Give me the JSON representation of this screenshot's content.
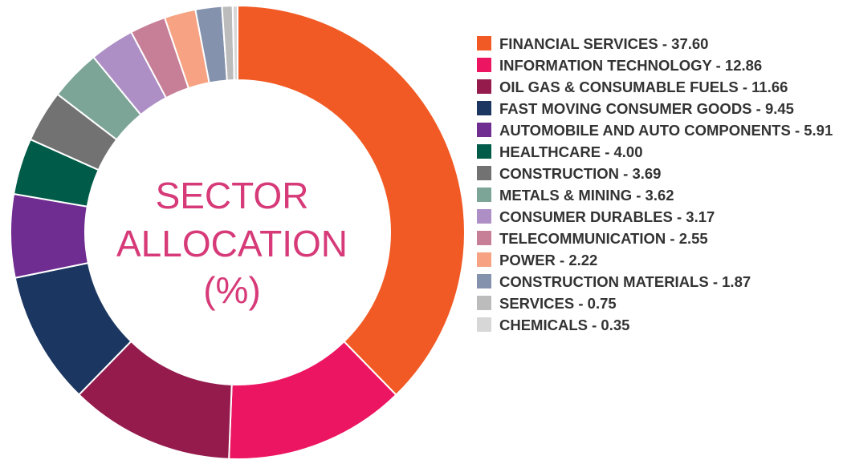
{
  "chart_data": {
    "type": "pie",
    "variant": "donut",
    "title_lines": [
      "SECTOR",
      "ALLOCATION",
      "(%)"
    ],
    "slices": [
      {
        "label": "FINANCIAL SERVICES",
        "value": 37.6,
        "display": "FINANCIAL SERVICES - 37.60",
        "color": "#f15a24"
      },
      {
        "label": "INFORMATION TECHNOLOGY",
        "value": 12.86,
        "display": "INFORMATION TECHNOLOGY - 12.86",
        "color": "#ec1561"
      },
      {
        "label": "OIL GAS & CONSUMABLE FUELS",
        "value": 11.66,
        "display": "OIL GAS & CONSUMABLE FUELS - 11.66",
        "color": "#951b4d"
      },
      {
        "label": "FAST MOVING CONSUMER GOODS",
        "value": 9.45,
        "display": "FAST MOVING CONSUMER GOODS - 9.45",
        "color": "#1b3660"
      },
      {
        "label": "AUTOMOBILE AND AUTO COMPONENTS",
        "value": 5.91,
        "display": "AUTOMOBILE AND AUTO COMPONENTS - 5.91",
        "color": "#6f2c91"
      },
      {
        "label": "HEALTHCARE",
        "value": 4.0,
        "display": "HEALTHCARE - 4.00",
        "color": "#005c48"
      },
      {
        "label": "CONSTRUCTION",
        "value": 3.69,
        "display": "CONSTRUCTION - 3.69",
        "color": "#727272"
      },
      {
        "label": "METALS & MINING",
        "value": 3.62,
        "display": "METALS & MINING - 3.62",
        "color": "#7ca598"
      },
      {
        "label": "CONSUMER DURABLES",
        "value": 3.17,
        "display": "CONSUMER DURABLES - 3.17",
        "color": "#ad8fc6"
      },
      {
        "label": "TELECOMMUNICATION",
        "value": 2.55,
        "display": "TELECOMMUNICATION - 2.55",
        "color": "#c77f98"
      },
      {
        "label": "POWER",
        "value": 2.22,
        "display": "POWER - 2.22",
        "color": "#f7a383"
      },
      {
        "label": "CONSTRUCTION MATERIALS",
        "value": 1.87,
        "display": "CONSTRUCTION MATERIALS - 1.87",
        "color": "#8592ad"
      },
      {
        "label": "SERVICES",
        "value": 0.75,
        "display": "SERVICES - 0.75",
        "color": "#bcbcbc"
      },
      {
        "label": "CHEMICALS",
        "value": 0.35,
        "display": "CHEMICALS - 0.35",
        "color": "#d7d7d7"
      }
    ],
    "legend_position": "right"
  }
}
